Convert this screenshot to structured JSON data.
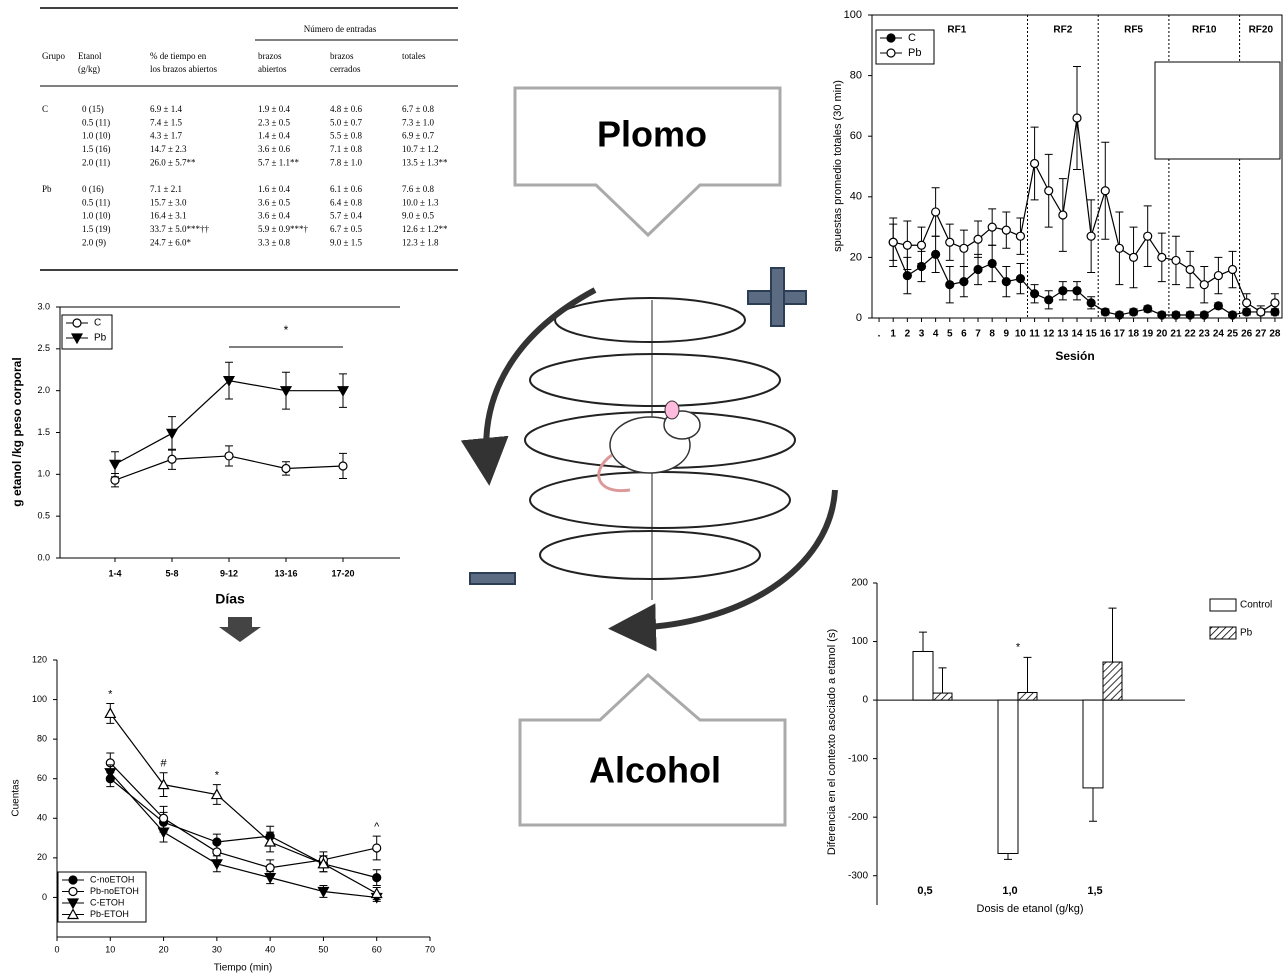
{
  "table": {
    "header": "Número de entradas",
    "columns": [
      [
        "Grupo"
      ],
      [
        "Etanol",
        "(g/kg)"
      ],
      [
        "% de tiempo en",
        "los brazos abiertos"
      ],
      [
        "brazos",
        "abiertos"
      ],
      [
        "brazos",
        "cerrados"
      ],
      [
        "totales"
      ]
    ],
    "groups": [
      {
        "group": "C",
        "rows": [
          [
            "0 (15)",
            "6.9 ± 1.4",
            "1.9 ± 0.4",
            "4.8 ± 0.6",
            "6.7 ± 0.8"
          ],
          [
            "0.5 (11)",
            "7.4 ± 1.5",
            "2.3 ± 0.5",
            "5.0 ± 0.7",
            "7.3 ± 1.0"
          ],
          [
            "1.0 (10)",
            "4.3 ± 1.7",
            "1.4 ± 0.4",
            "5.5 ± 0.8",
            "6.9 ± 0.7"
          ],
          [
            "1.5 (16)",
            "14.7 ± 2.3",
            "3.6 ± 0.6",
            "7.1 ± 0.8",
            "10.7 ± 1.2"
          ],
          [
            "2.0 (11)",
            "26.0 ± 5.7**",
            "5.7 ± 1.1**",
            "7.8 ± 1.0",
            "13.5 ± 1.3**"
          ]
        ]
      },
      {
        "group": "Pb",
        "rows": [
          [
            "0 (16)",
            "7.1 ± 2.1",
            "1.6 ± 0.4",
            "6.1 ± 0.6",
            "7.6 ± 0.8"
          ],
          [
            "0.5 (11)",
            "15.7 ± 3.0",
            "3.6 ± 0.5",
            "6.4 ± 0.8",
            "10.0 ± 1.3"
          ],
          [
            "1.0 (10)",
            "16.4 ± 3.1",
            "3.6 ± 0.4",
            "5.7 ± 0.4",
            "9.0 ± 0.5"
          ],
          [
            "1.5 (19)",
            "33.7 ± 5.0***††",
            "5.9 ± 0.9***†",
            "6.7 ± 0.5",
            "12.6 ± 1.2**"
          ],
          [
            "2.0 (9)",
            "24.7 ± 6.0*",
            "3.3 ± 0.8",
            "9.0 ± 1.5",
            "12.3 ± 1.8"
          ]
        ]
      }
    ]
  },
  "diagram": {
    "top_label": "Plomo",
    "bottom_label": "Alcohol"
  },
  "chart_data": [
    {
      "type": "line",
      "y_label": "g etanol /kg peso corporal",
      "x_label": "Días",
      "categories": [
        "1-4",
        "5-8",
        "9-12",
        "13-16",
        "17-20"
      ],
      "ylim": [
        0,
        3
      ],
      "yticks": [
        {
          "value": 0,
          "label": "0.0"
        },
        {
          "value": 0.5,
          "label": "0.5"
        },
        {
          "value": 1,
          "label": "1.0"
        },
        {
          "value": 1.5,
          "label": "1.5"
        },
        {
          "value": 2,
          "label": "2.0"
        },
        {
          "value": 2.5,
          "label": "2.5"
        },
        {
          "value": 3,
          "label": "3.0"
        }
      ],
      "legend": "upper left",
      "series": [
        {
          "name": "C",
          "color": "#000000",
          "marker": "circle-open",
          "values": [
            0.93,
            1.18,
            1.22,
            1.07,
            1.1
          ],
          "errors": [
            0.08,
            0.12,
            0.12,
            0.08,
            0.15
          ]
        },
        {
          "name": "Pb",
          "color": "#000000",
          "marker": "triangle-down",
          "values": [
            1.12,
            1.49,
            2.12,
            2.0,
            2.0
          ],
          "errors": [
            0.15,
            0.2,
            0.22,
            0.22,
            0.2
          ]
        }
      ],
      "annotations": [
        {
          "text": "*",
          "from": "9-12",
          "to": "17-20"
        }
      ]
    },
    {
      "type": "line",
      "y_label": "Cuentas",
      "x_label": "Tiempo (min)",
      "x": [
        10,
        20,
        30,
        40,
        50,
        60
      ],
      "xlim": [
        0,
        70
      ],
      "xticks": [
        0,
        10,
        20,
        30,
        40,
        50,
        60,
        70
      ],
      "ylim": [
        -20,
        120
      ],
      "yticks": [
        0,
        20,
        40,
        60,
        80,
        100,
        120
      ],
      "legend": "lower left",
      "series": [
        {
          "name": "C-noETOH",
          "color": "#000000",
          "marker": "circle",
          "values": [
            60,
            38,
            28,
            31,
            17,
            10
          ],
          "errors": [
            4,
            5,
            4,
            5,
            4,
            4
          ]
        },
        {
          "name": "Pb-noETOH",
          "color": "#000000",
          "marker": "circle-open",
          "values": [
            68,
            40,
            23,
            15,
            19,
            25
          ],
          "errors": [
            5,
            6,
            4,
            4,
            4,
            6
          ]
        },
        {
          "name": "C-ETOH",
          "color": "#000000",
          "marker": "triangle-down",
          "values": [
            63,
            33,
            17,
            10,
            3,
            0
          ],
          "errors": [
            4,
            5,
            4,
            3,
            3,
            2
          ]
        },
        {
          "name": "Pb-ETOH",
          "color": "#000000",
          "marker": "triangle-up-open",
          "values": [
            93,
            57,
            52,
            28,
            17,
            2
          ],
          "errors": [
            5,
            6,
            5,
            5,
            4,
            3
          ]
        }
      ],
      "annotations": [
        {
          "text": "*",
          "x": 10
        },
        {
          "text": "#",
          "x": 20
        },
        {
          "text": "*",
          "x": 30
        },
        {
          "text": "^",
          "x": 60
        }
      ]
    },
    {
      "type": "line",
      "y_label": "spuestas promedio totales (30 min)",
      "x_label": "Sesión",
      "categories": [
        ".",
        "1",
        "2",
        "3",
        "4",
        "5",
        "6",
        "7",
        "8",
        "9",
        "10",
        "11",
        "12",
        "13",
        "14",
        "15",
        "16",
        "17",
        "18",
        "19",
        "20",
        "21",
        "22",
        "23",
        "24",
        "25",
        "26",
        "27",
        "28"
      ],
      "ylim": [
        0,
        100
      ],
      "yticks": [
        0,
        20,
        40,
        60,
        80,
        100
      ],
      "legend": "upper left",
      "series": [
        {
          "name": "C",
          "color": "#000000",
          "marker": "circle",
          "values": [
            null,
            25,
            14,
            17,
            21,
            11,
            12,
            16,
            18,
            12,
            13,
            8,
            6,
            9,
            9,
            5,
            2,
            1,
            2,
            3,
            1,
            1,
            1,
            1,
            4,
            1,
            2,
            2,
            2
          ],
          "errors": [
            null,
            6,
            6,
            5,
            6,
            6,
            5,
            5,
            6,
            5,
            5,
            3,
            3,
            3,
            3,
            2,
            1,
            1,
            1,
            1,
            1,
            1,
            1,
            1,
            1,
            1,
            1,
            1,
            1
          ]
        },
        {
          "name": "Pb",
          "color": "#000000",
          "marker": "circle-open",
          "values": [
            null,
            25,
            24,
            24,
            35,
            25,
            23,
            26,
            30,
            29,
            27,
            51,
            42,
            34,
            66,
            27,
            42,
            23,
            20,
            27,
            20,
            19,
            16,
            11,
            14,
            16,
            5,
            2,
            5
          ],
          "errors": [
            null,
            8,
            8,
            6,
            8,
            6,
            6,
            6,
            6,
            6,
            6,
            12,
            12,
            12,
            17,
            12,
            16,
            12,
            10,
            10,
            8,
            8,
            6,
            6,
            6,
            6,
            3,
            2,
            3
          ]
        }
      ],
      "regions": [
        {
          "label": "RF1",
          "from": "1",
          "to": "10"
        },
        {
          "label": "RF2",
          "from": "11",
          "to": "15"
        },
        {
          "label": "RF5",
          "from": "16",
          "to": "20"
        },
        {
          "label": "RF10",
          "from": "21",
          "to": "25"
        },
        {
          "label": "RF20",
          "from": "26",
          "to": "28"
        }
      ]
    },
    {
      "type": "bar",
      "y_label": "Diferencia en el contexto asociado a etanol (s)",
      "x_label": "Dosis de etanol (g/kg)",
      "categories": [
        "0,5",
        "1,0",
        "1,5"
      ],
      "ylim": [
        -350,
        200
      ],
      "yticks": [
        -300,
        -200,
        -100,
        0,
        100,
        200
      ],
      "legend": "right",
      "series": [
        {
          "name": "Control",
          "color": "#ffffff",
          "fill": "solid",
          "values": [
            83,
            -262,
            -150
          ],
          "errors": [
            33,
            10,
            57
          ]
        },
        {
          "name": "Pb",
          "color": "#ffffff",
          "fill": "hatch",
          "values": [
            12,
            13,
            65
          ],
          "errors": [
            43,
            60,
            92
          ]
        }
      ],
      "annotations": [
        {
          "text": "*",
          "category": "1,0"
        }
      ]
    }
  ]
}
